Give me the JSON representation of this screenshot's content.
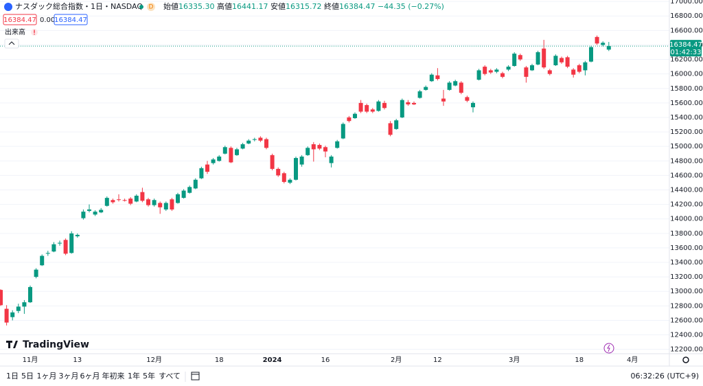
{
  "header": {
    "symbol": "ナスダック総合指数・1日・NASDAQ",
    "badge": "D",
    "ohlc": [
      {
        "label": "始値",
        "value": "16335.30"
      },
      {
        "label": "高値",
        "value": "16441.17"
      },
      {
        "label": "安値",
        "value": "16315.72"
      },
      {
        "label": "終値",
        "value": "16384.47"
      }
    ],
    "change": "−44.35 (−0.27%)"
  },
  "trade_row": {
    "sell": "16384.47",
    "spread": "0.00",
    "buy": "16384.47"
  },
  "volume_label": "出来高",
  "logo": "TradingView",
  "range_buttons": [
    "1日",
    "5日",
    "1ヶ月",
    "3ヶ月",
    "6ヶ月",
    "年初来",
    "1年",
    "5年",
    "すべて"
  ],
  "clock": "06:32:26 (UTC+9)",
  "chart_data": {
    "type": "candlestick",
    "up_color": "#089981",
    "down_color": "#f23645",
    "grid": true,
    "categories": [
      null,
      null,
      null,
      null,
      null,
      "11月",
      null,
      null,
      null,
      null,
      null,
      null,
      null,
      "13",
      null,
      null,
      null,
      null,
      null,
      null,
      null,
      null,
      null,
      null,
      null,
      null,
      "12月",
      null,
      null,
      null,
      null,
      null,
      null,
      null,
      null,
      null,
      null,
      "18",
      null,
      null,
      null,
      null,
      null,
      null,
      null,
      null,
      "2024",
      null,
      null,
      null,
      null,
      null,
      null,
      null,
      null,
      "16",
      null,
      null,
      null,
      null,
      null,
      null,
      null,
      null,
      null,
      null,
      null,
      "2月",
      null,
      null,
      null,
      null,
      null,
      null,
      "12",
      null,
      null,
      null,
      null,
      null,
      null,
      null,
      null,
      null,
      null,
      null,
      null,
      "3月",
      null,
      null,
      null,
      null,
      null,
      null,
      null,
      null,
      null,
      null,
      "18",
      null,
      null,
      null,
      null,
      null,
      null,
      null,
      null,
      "4月"
    ],
    "open": [
      13020,
      12760,
      12645,
      12730,
      12790,
      12850,
      13200,
      13360,
      13520,
      13550,
      13660,
      13710,
      13530,
      13760,
      14010,
      14110,
      14060,
      14090,
      14180,
      14260,
      14270,
      14260,
      14280,
      14240,
      14370,
      14270,
      14190,
      14220,
      14130,
      14270,
      14220,
      14290,
      14360,
      14420,
      14560,
      14750,
      14770,
      14800,
      14900,
      14980,
      14880,
      14970,
      15040,
      15090,
      15120,
      15100,
      14880,
      14690,
      14630,
      14500,
      14540,
      14750,
      14880,
      15030,
      15020,
      14990,
      14770,
      14980,
      15110,
      15400,
      15390,
      15600,
      15570,
      15510,
      15490,
      15600,
      15320,
      15240,
      15400,
      15610,
      15600,
      15670,
      15780,
      15900,
      15980,
      15660,
      15780,
      15840,
      15880,
      15680,
      15540,
      15920,
      16100,
      16050,
      16030,
      16010,
      16060,
      16110,
      16260,
      16090,
      16050,
      16130,
      16350,
      16050,
      16120,
      16220,
      16230,
      16060,
      16120,
      16050,
      16170,
      16510,
      16400,
      16335.3,
      null,
      null,
      null,
      null
    ],
    "high": [
      13030,
      12810,
      12740,
      12830,
      12880,
      13080,
      13320,
      13510,
      13560,
      13680,
      13700,
      13730,
      13830,
      13800,
      14130,
      14200,
      14120,
      14150,
      14310,
      14280,
      14340,
      14280,
      14300,
      14340,
      14430,
      14290,
      14280,
      14240,
      14240,
      14290,
      14360,
      14410,
      14460,
      14560,
      14720,
      14800,
      14840,
      14880,
      15010,
      15000,
      14980,
      15050,
      15100,
      15120,
      15140,
      15120,
      14900,
      14710,
      14650,
      14560,
      14860,
      14880,
      15000,
      15060,
      15040,
      15010,
      14880,
      15090,
      15330,
      15420,
      15470,
      15640,
      15590,
      15530,
      15640,
      15630,
      15350,
      15380,
      15660,
      15640,
      15620,
      15780,
      15840,
      16010,
      16080,
      15780,
      15900,
      15920,
      15900,
      15700,
      15620,
      16070,
      16120,
      16070,
      16080,
      16030,
      16120,
      16300,
      16280,
      16110,
      16140,
      16320,
      16470,
      16070,
      16270,
      16240,
      16250,
      16080,
      16140,
      16180,
      16390,
      16530,
      16450,
      16441.17,
      null,
      null,
      null,
      null
    ],
    "low": [
      12800,
      12530,
      12600,
      12700,
      12690,
      12840,
      13180,
      13350,
      13490,
      13540,
      13630,
      13500,
      13520,
      13740,
      13990,
      14090,
      14040,
      14080,
      14170,
      14210,
      14240,
      14240,
      14190,
      14230,
      14230,
      14170,
      14170,
      14070,
      14110,
      14110,
      14210,
      14280,
      14350,
      14410,
      14550,
      14620,
      14750,
      14790,
      14890,
      14770,
      14870,
      14960,
      15030,
      15070,
      15060,
      14960,
      14670,
      14580,
      14490,
      14480,
      14530,
      14720,
      14870,
      14790,
      14950,
      14850,
      14710,
      14970,
      15100,
      15330,
      15380,
      15460,
      15460,
      15460,
      15480,
      15510,
      15140,
      15230,
      15390,
      15560,
      15570,
      15660,
      15770,
      15890,
      15910,
      15560,
      15770,
      15830,
      15720,
      15610,
      15470,
      15910,
      15980,
      16000,
      16010,
      15940,
      16040,
      16100,
      16180,
      15880,
      16040,
      16120,
      16070,
      15980,
      16110,
      16140,
      16080,
      15950,
      16010,
      15980,
      16160,
      16400,
      16380,
      16315.72,
      null,
      null,
      null,
      null
    ],
    "close": [
      12810,
      12570,
      12710,
      12790,
      12850,
      13060,
      13300,
      13490,
      13530,
      13650,
      13670,
      13520,
      13800,
      13780,
      14100,
      14130,
      14100,
      14125,
      14290,
      14230,
      14265,
      14250,
      14210,
      14320,
      14250,
      14190,
      14260,
      14160,
      14220,
      14130,
      14340,
      14390,
      14440,
      14540,
      14700,
      14650,
      14820,
      14860,
      14990,
      14780,
      14960,
      15030,
      15080,
      15100,
      15080,
      14980,
      14690,
      14600,
      14510,
      14540,
      14840,
      14860,
      14980,
      14960,
      14970,
      14930,
      14860,
      15070,
      15310,
      15350,
      15450,
      15480,
      15480,
      15480,
      15620,
      15530,
      15160,
      15360,
      15640,
      15580,
      15580,
      15760,
      15820,
      15990,
      15930,
      15620,
      15880,
      15900,
      15740,
      15630,
      15600,
      16050,
      16000,
      16020,
      16060,
      15960,
      16100,
      16280,
      16200,
      15960,
      16120,
      16300,
      16090,
      16000,
      16250,
      16160,
      16100,
      15990,
      16030,
      16160,
      16370,
      16420,
      16430,
      16384.47,
      null,
      null,
      null,
      null
    ],
    "ylim": [
      12140,
      17020
    ],
    "yticks": [
      {
        "value": 12200,
        "label": "12200.00"
      },
      {
        "value": 12400,
        "label": "12400.00"
      },
      {
        "value": 12600,
        "label": "12600.00"
      },
      {
        "value": 12800,
        "label": "12800.00"
      },
      {
        "value": 13000,
        "label": "13000.00"
      },
      {
        "value": 13200,
        "label": "13200.00"
      },
      {
        "value": 13400,
        "label": "13400.00"
      },
      {
        "value": 13600,
        "label": "13600.00"
      },
      {
        "value": 13800,
        "label": "13800.00"
      },
      {
        "value": 14000,
        "label": "14000.00"
      },
      {
        "value": 14200,
        "label": "14200.00"
      },
      {
        "value": 14400,
        "label": "14400.00"
      },
      {
        "value": 14600,
        "label": "14600.00"
      },
      {
        "value": 14800,
        "label": "14800.00"
      },
      {
        "value": 15000,
        "label": "15000.00"
      },
      {
        "value": 15200,
        "label": "15200.00"
      },
      {
        "value": 15400,
        "label": "15400.00"
      },
      {
        "value": 15600,
        "label": "15600.00"
      },
      {
        "value": 15800,
        "label": "15800.00"
      },
      {
        "value": 16000,
        "label": "16000.00"
      },
      {
        "value": 16200,
        "label": "16200.00"
      },
      {
        "value": 16400,
        "label": "16400.00"
      },
      {
        "value": 16600,
        "label": "16600.00"
      },
      {
        "value": 16800,
        "label": "16800.00"
      },
      {
        "value": 17000,
        "label": "17000.00"
      }
    ],
    "price_line": {
      "value": 16384.47,
      "countdown": "01:42:33",
      "color": "#089981"
    }
  }
}
